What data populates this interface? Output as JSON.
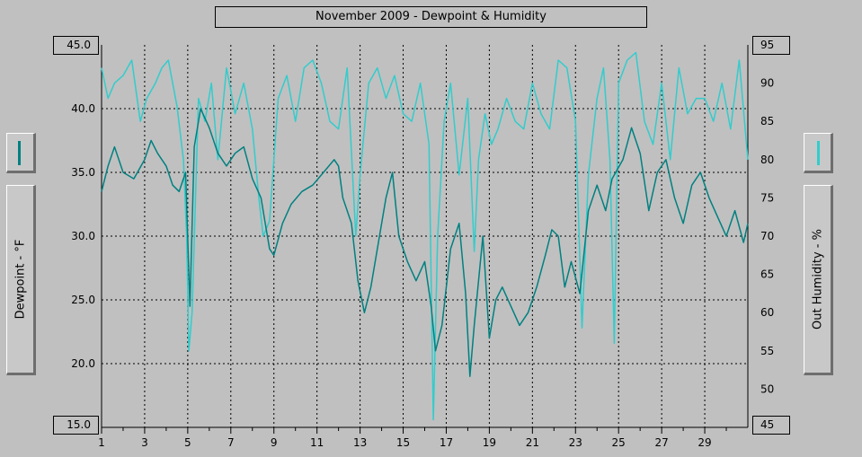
{
  "title": "November 2009 - Dewpoint & Humidity",
  "left_axis": {
    "label": "Dewpoint - °F",
    "top_value": "45.0",
    "bottom_value": "15.0",
    "ticks": [
      "40.0",
      "35.0",
      "30.0",
      "25.0",
      "20.0"
    ]
  },
  "right_axis": {
    "label": "Out Humidity - %",
    "top_value": "95",
    "bottom_value": "45",
    "ticks": [
      "90",
      "85",
      "80",
      "75",
      "70",
      "65",
      "60",
      "55",
      "50"
    ]
  },
  "colors": {
    "background": "#c0c0c0",
    "dewpoint": "#008080",
    "humidity": "#33cccc",
    "grid": "#000000"
  },
  "chart_data": {
    "type": "line",
    "title": "November 2009 - Dewpoint & Humidity",
    "xlabel": "",
    "x_tick_labels": [
      "1",
      "3",
      "5",
      "7",
      "9",
      "11",
      "13",
      "15",
      "17",
      "19",
      "21",
      "23",
      "25",
      "27",
      "29"
    ],
    "xlim": [
      1,
      31
    ],
    "series": [
      {
        "name": "Dewpoint",
        "axis": "left",
        "unit": "°F",
        "ylim": [
          15,
          45
        ],
        "x": [
          1,
          1.3,
          1.6,
          2,
          2.5,
          3,
          3.3,
          3.6,
          4,
          4.3,
          4.6,
          4.9,
          5.1,
          5.3,
          5.6,
          6,
          6.4,
          6.8,
          7.2,
          7.6,
          8,
          8.4,
          8.6,
          8.8,
          9,
          9.4,
          9.8,
          10.3,
          10.8,
          11.3,
          11.8,
          12,
          12.2,
          12.6,
          12.9,
          13.2,
          13.5,
          13.9,
          14.2,
          14.5,
          14.8,
          15.2,
          15.6,
          16,
          16.3,
          16.5,
          16.8,
          17.2,
          17.6,
          17.9,
          18.1,
          18.3,
          18.7,
          19,
          19.3,
          19.6,
          20,
          20.4,
          20.8,
          21.2,
          21.6,
          21.9,
          22.2,
          22.5,
          22.8,
          23.2,
          23.6,
          24,
          24.4,
          24.7,
          25.2,
          25.6,
          26,
          26.4,
          26.8,
          27.2,
          27.6,
          28,
          28.4,
          28.8,
          29.2,
          29.6,
          30,
          30.4,
          30.8,
          31
        ],
        "values": [
          33.5,
          35.5,
          37,
          35,
          34.5,
          36,
          37.5,
          36.5,
          35.5,
          34,
          33.5,
          35,
          24.5,
          37,
          40,
          38.5,
          36.5,
          35.5,
          36.5,
          37,
          34.5,
          33,
          31,
          29,
          28.5,
          31,
          32.5,
          33.5,
          34,
          35,
          36,
          35.5,
          33,
          31,
          26.5,
          24,
          26,
          30,
          33,
          35,
          30,
          28,
          26.5,
          28,
          24.5,
          21,
          23,
          29,
          31,
          25.5,
          19,
          23,
          30,
          22,
          25,
          26,
          24.5,
          23,
          24,
          26,
          28.5,
          30.5,
          30,
          26,
          28,
          25.5,
          32,
          34,
          32,
          34.5,
          36,
          38.5,
          36.5,
          32,
          35,
          36,
          33,
          31,
          34,
          35,
          33,
          31.5,
          30,
          32,
          29.5,
          31
        ]
      },
      {
        "name": "Out Humidity",
        "axis": "right",
        "unit": "%",
        "ylim": [
          45,
          95
        ],
        "x": [
          1,
          1.3,
          1.6,
          2,
          2.4,
          2.8,
          3.1,
          3.5,
          3.8,
          4.1,
          4.5,
          4.8,
          4.95,
          5.05,
          5.2,
          5.5,
          5.8,
          6.1,
          6.4,
          6.8,
          7.2,
          7.6,
          8,
          8.3,
          8.5,
          8.8,
          9.2,
          9.6,
          10,
          10.4,
          10.8,
          11.2,
          11.6,
          12,
          12.4,
          12.8,
          13,
          13.4,
          13.8,
          14.2,
          14.6,
          15,
          15.4,
          15.8,
          16.2,
          16.4,
          16.6,
          16.9,
          17.2,
          17.6,
          18,
          18.3,
          18.5,
          18.8,
          19.1,
          19.4,
          19.8,
          20.2,
          20.6,
          21,
          21.4,
          21.8,
          22.2,
          22.6,
          23,
          23.3,
          23.6,
          24,
          24.3,
          24.6,
          24.8,
          25,
          25.4,
          25.8,
          26.2,
          26.6,
          27,
          27.4,
          27.8,
          28.2,
          28.6,
          29,
          29.4,
          29.8,
          30.2,
          30.6,
          31
        ],
        "values": [
          92,
          88,
          90,
          91,
          93,
          85,
          88,
          90,
          92,
          93,
          87,
          80,
          70,
          55,
          60,
          88,
          85,
          90,
          80,
          92,
          86,
          90,
          84,
          75,
          70,
          72,
          88,
          91,
          85,
          92,
          93,
          90,
          85,
          84,
          92,
          70,
          78,
          90,
          92,
          88,
          91,
          86,
          85,
          90,
          82,
          46,
          70,
          85,
          90,
          78,
          88,
          68,
          80,
          86,
          82,
          84,
          88,
          85,
          84,
          90,
          86,
          84,
          93,
          92,
          85,
          58,
          78,
          88,
          92,
          80,
          56,
          90,
          93,
          94,
          85,
          82,
          90,
          80,
          92,
          86,
          88,
          88,
          85,
          90,
          84,
          93,
          80
        ]
      }
    ]
  }
}
